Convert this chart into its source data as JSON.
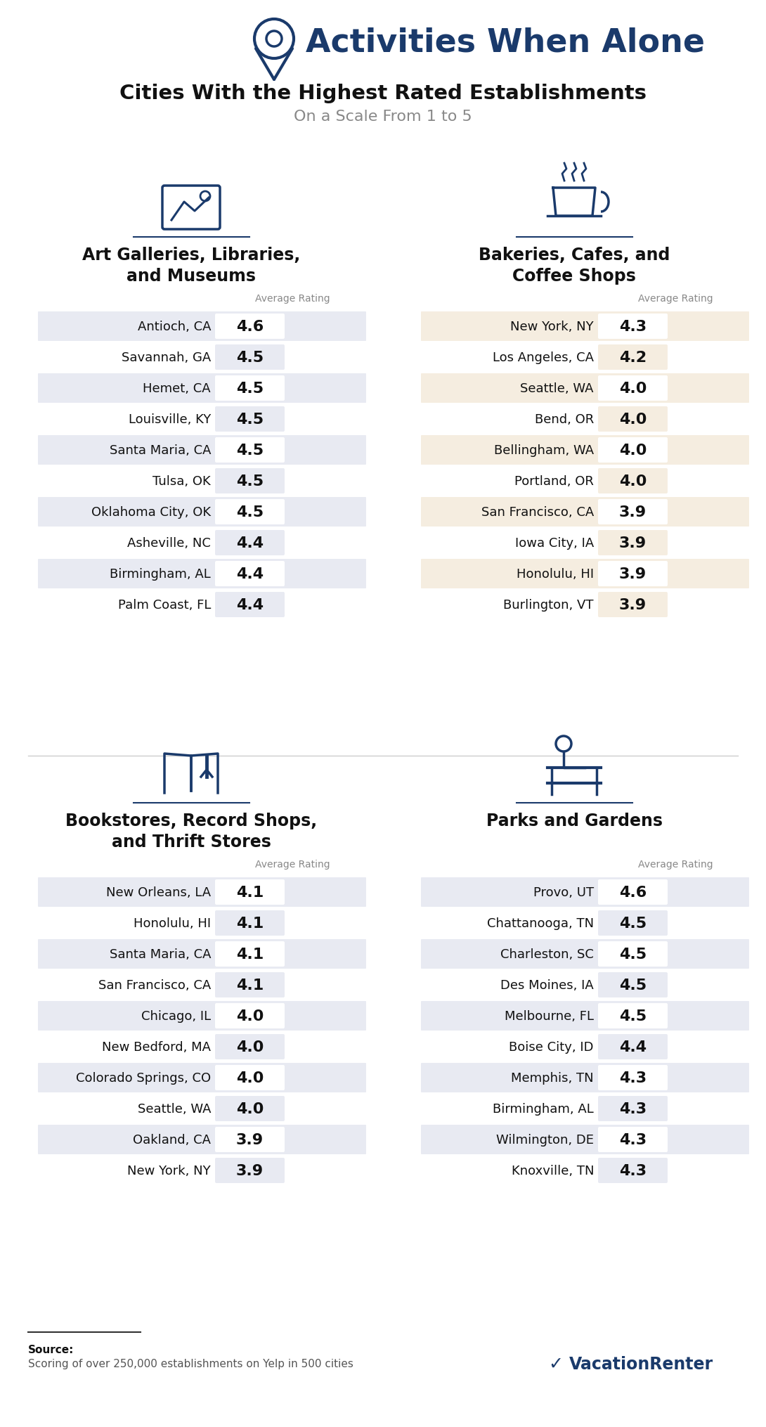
{
  "title": "Activities When Alone",
  "subtitle": "Cities With the Highest Rated Establishments",
  "subtitle2": "On a Scale From 1 to 5",
  "bg_color": "#ffffff",
  "header_color": "#1a3a6b",
  "text_color": "#111111",
  "avg_rating_color": "#888888",
  "row_alt_color": "#e8eaf2",
  "row_warm_color": "#f5ede0",
  "value_color": "#111111",
  "sections": [
    {
      "name": "art",
      "title": "Art Galleries, Libraries,\nand Museums",
      "cities": [
        "Antioch, CA",
        "Savannah, GA",
        "Hemet, CA",
        "Louisville, KY",
        "Santa Maria, CA",
        "Tulsa, OK",
        "Oklahoma City, OK",
        "Asheville, NC",
        "Birmingham, AL",
        "Palm Coast, FL"
      ],
      "ratings": [
        4.6,
        4.5,
        4.5,
        4.5,
        4.5,
        4.5,
        4.5,
        4.4,
        4.4,
        4.4
      ],
      "highlight_rows": [
        0,
        1,
        3,
        5,
        7,
        9
      ],
      "highlight_color": "#e8eaf2"
    },
    {
      "name": "bakeries",
      "title": "Bakeries, Cafes, and\nCoffee Shops",
      "cities": [
        "New York, NY",
        "Los Angeles, CA",
        "Seattle, WA",
        "Bend, OR",
        "Bellingham, WA",
        "Portland, OR",
        "San Francisco, CA",
        "Iowa City, IA",
        "Honolulu, HI",
        "Burlington, VT"
      ],
      "ratings": [
        4.3,
        4.2,
        4.0,
        4.0,
        4.0,
        4.0,
        3.9,
        3.9,
        3.9,
        3.9
      ],
      "highlight_rows": [
        0,
        1,
        3,
        5,
        7,
        9
      ],
      "highlight_color": "#f5ede0"
    },
    {
      "name": "bookstores",
      "title": "Bookstores, Record Shops,\nand Thrift Stores",
      "cities": [
        "New Orleans, LA",
        "Honolulu, HI",
        "Santa Maria, CA",
        "San Francisco, CA",
        "Chicago, IL",
        "New Bedford, MA",
        "Colorado Springs, CO",
        "Seattle, WA",
        "Oakland, CA",
        "New York, NY"
      ],
      "ratings": [
        4.1,
        4.1,
        4.1,
        4.1,
        4.0,
        4.0,
        4.0,
        4.0,
        3.9,
        3.9
      ],
      "highlight_rows": [
        0,
        1,
        3,
        5,
        7,
        9
      ],
      "highlight_color": "#e8eaf2"
    },
    {
      "name": "parks",
      "title": "Parks and Gardens",
      "cities": [
        "Provo, UT",
        "Chattanooga, TN",
        "Charleston, SC",
        "Des Moines, IA",
        "Melbourne, FL",
        "Boise City, ID",
        "Memphis, TN",
        "Birmingham, AL",
        "Wilmington, DE",
        "Knoxville, TN"
      ],
      "ratings": [
        4.6,
        4.5,
        4.5,
        4.5,
        4.5,
        4.4,
        4.3,
        4.3,
        4.3,
        4.3
      ],
      "highlight_rows": [
        0,
        1,
        3,
        5,
        7,
        9
      ],
      "highlight_color": "#e8eaf2"
    }
  ],
  "source_line1": "Source:",
  "source_line2": "Scoring of over 250,000 establishments on Yelp in 500 cities",
  "logo_text": "VacationRenter"
}
